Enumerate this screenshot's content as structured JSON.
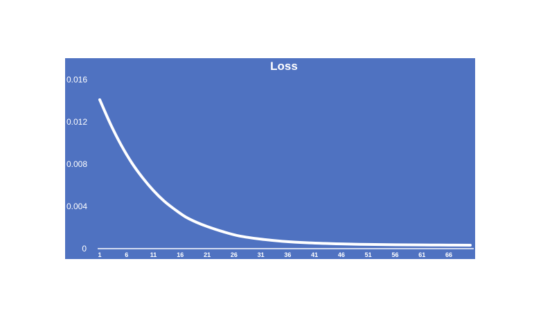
{
  "colors": {
    "background": "#ffffff",
    "plot_background": "#4f72c1",
    "line": "#ffffff"
  },
  "chart_data": {
    "type": "line",
    "title": "Loss",
    "xlabel": "",
    "ylabel": "",
    "ylim": [
      0,
      0.016
    ],
    "y_ticks": [
      "0",
      "0.004",
      "0.008",
      "0.012",
      "0.016"
    ],
    "y_tick_values": [
      0,
      0.004,
      0.008,
      0.012,
      0.016
    ],
    "x_ticks": [
      "1",
      "6",
      "11",
      "16",
      "21",
      "26",
      "31",
      "36",
      "41",
      "46",
      "51",
      "56",
      "61",
      "66"
    ],
    "x_tick_values": [
      1,
      6,
      11,
      16,
      21,
      26,
      31,
      36,
      41,
      46,
      51,
      56,
      61,
      66
    ],
    "xlim": [
      1,
      70
    ],
    "grid": false,
    "legend": "none",
    "series": [
      {
        "x": [
          1,
          3,
          5,
          7,
          9,
          11,
          13,
          15,
          17,
          19,
          21,
          24,
          27,
          31,
          35,
          40,
          46,
          51,
          56,
          61,
          66,
          70
        ],
        "values": [
          0.0141,
          0.0118,
          0.0098,
          0.0081,
          0.0067,
          0.0055,
          0.0045,
          0.0037,
          0.003,
          0.0025,
          0.0021,
          0.0016,
          0.0012,
          0.0009,
          0.0007,
          0.00055,
          0.00045,
          0.0004,
          0.00037,
          0.00035,
          0.00034,
          0.00033
        ]
      }
    ]
  }
}
